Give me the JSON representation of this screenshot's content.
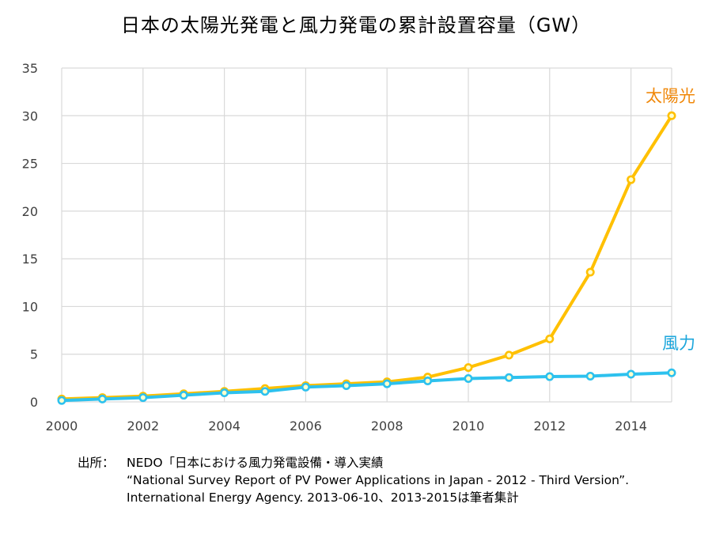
{
  "title": "日本の太陽光発電と風力発電の累計設置容量（GW）",
  "chart_data": {
    "type": "line",
    "title": "日本の太陽光発電と風力発電の累計設置容量（GW）",
    "x": [
      2000,
      2001,
      2002,
      2003,
      2004,
      2005,
      2006,
      2007,
      2008,
      2009,
      2010,
      2011,
      2012,
      2013,
      2014,
      2015
    ],
    "xticks": [
      "2000",
      "2002",
      "2004",
      "2006",
      "2008",
      "2010",
      "2012",
      "2014"
    ],
    "xlim": [
      2000,
      2015
    ],
    "yticks": [
      "0",
      "5",
      "10",
      "15",
      "20",
      "25",
      "30",
      "35"
    ],
    "ylim": [
      0,
      35
    ],
    "grid": true,
    "series": [
      {
        "name": "太陽光",
        "color": "#FFC000",
        "values": [
          0.3,
          0.45,
          0.6,
          0.85,
          1.1,
          1.4,
          1.7,
          1.9,
          2.1,
          2.6,
          3.6,
          4.9,
          6.6,
          13.6,
          23.3,
          30.0
        ]
      },
      {
        "name": "風力",
        "color": "#2DC1EE",
        "values": [
          0.15,
          0.3,
          0.45,
          0.7,
          0.95,
          1.1,
          1.55,
          1.7,
          1.9,
          2.2,
          2.45,
          2.55,
          2.65,
          2.7,
          2.9,
          3.05
        ]
      }
    ]
  },
  "source": {
    "label": "出所：",
    "line1": "NEDO「日本における風力発電設備・導入実績",
    "line2": "“National Survey Report of PV Power Applications in Japan - 2012 - Third Version”.",
    "line3": "International Energy Agency. 2013-06-10、2013-2015は筆者集計"
  }
}
